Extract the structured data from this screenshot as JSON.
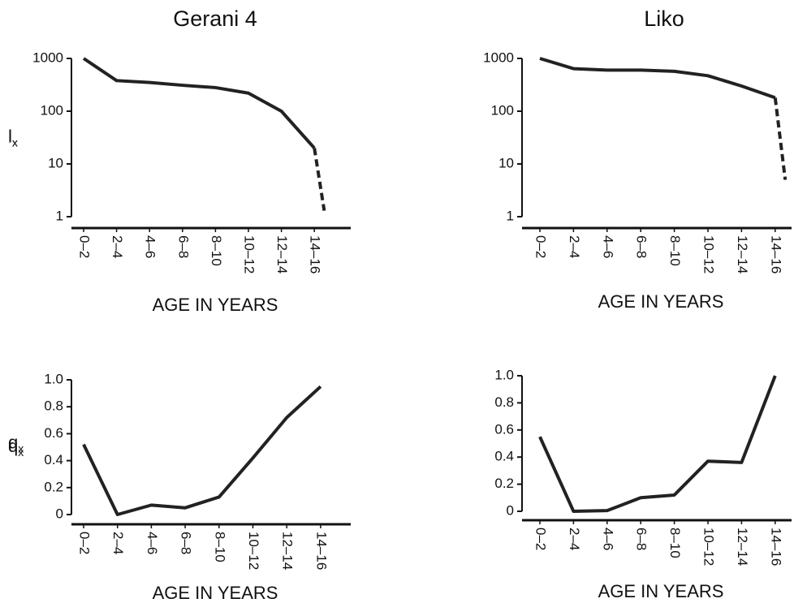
{
  "chart_data": [
    {
      "type": "line",
      "title": "Gerani 4",
      "ylabel": "l",
      "ylabel_sub": "x",
      "xlabel": "AGE IN YEARS",
      "categories": [
        "0–2",
        "2–4",
        "4–6",
        "6–8",
        "8–10",
        "10–12",
        "12–14",
        "14–16"
      ],
      "values": [
        1000,
        380,
        350,
        310,
        280,
        220,
        100,
        20
      ],
      "dashed_extension": 1.3,
      "color": "#222222",
      "log_y": true,
      "ylim": [
        1,
        1000
      ],
      "yticks": [
        1,
        10,
        100,
        1000
      ]
    },
    {
      "type": "line",
      "title": "Liko",
      "ylabel": "l",
      "ylabel_sub": "x",
      "xlabel": "AGE IN YEARS",
      "categories": [
        "0–2",
        "2–4",
        "4–6",
        "6–8",
        "8–10",
        "10–12",
        "12–14",
        "14–16"
      ],
      "values": [
        1000,
        640,
        600,
        600,
        570,
        470,
        300,
        180
      ],
      "dashed_extension": 5,
      "color": "#222222",
      "log_y": true,
      "ylim": [
        1,
        1000
      ],
      "yticks": [
        1,
        10,
        100,
        1000
      ]
    },
    {
      "type": "line",
      "ylabel": "q",
      "ylabel_sub": "x",
      "xlabel": "AGE IN YEARS",
      "categories": [
        "0–2",
        "2–4",
        "4–6",
        "6–8",
        "8–10",
        "10–12",
        "12–14",
        "14–16"
      ],
      "values": [
        0.52,
        0,
        0.07,
        0.05,
        0.13,
        0.42,
        0.72,
        0.95
      ],
      "color": "#222222",
      "log_y": false,
      "ylim": [
        0,
        1
      ],
      "yticks": [
        0,
        0.2,
        0.4,
        0.6,
        0.8,
        {
          "value": 1,
          "label": "1.0"
        }
      ]
    },
    {
      "type": "line",
      "ylabel": "q",
      "ylabel_sub": "x",
      "xlabel": "AGE IN YEARS",
      "categories": [
        "0–2",
        "2–4",
        "4–6",
        "6–8",
        "8–10",
        "10–12",
        "12–14",
        "14–16"
      ],
      "values": [
        0.55,
        0,
        0.005,
        0.1,
        0.12,
        0.37,
        0.36,
        1
      ],
      "color": "#222222",
      "log_y": false,
      "ylim": [
        0,
        1
      ],
      "yticks": [
        0,
        0.2,
        0.4,
        0.6,
        0.8,
        {
          "value": 1,
          "label": "1.0"
        }
      ]
    }
  ]
}
